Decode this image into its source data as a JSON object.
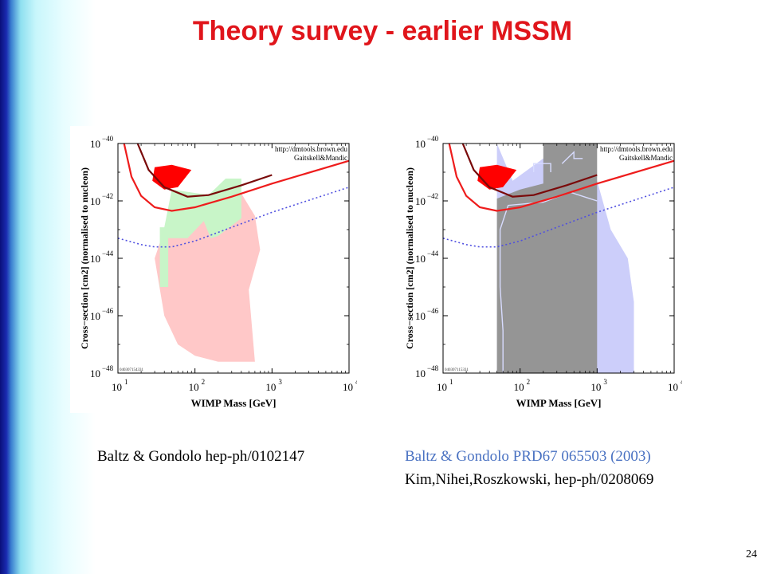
{
  "slide": {
    "title": "Theory survey - earlier MSSM",
    "page_number": "24",
    "accent_color": "#e0151b",
    "caption_left": "Baltz & Gondolo hep-ph/0102147",
    "caption_right_line1": "Baltz & Gondolo PRD67 065503 (2003)",
    "caption_right_line2": "Kim,Nihei,Roszkowski, hep-ph/0208069",
    "caption_right_line1_color": "#4a72c2"
  },
  "chart_data": [
    {
      "type": "area",
      "xlabel": "WIMP Mass [GeV]",
      "ylabel": "Cross−section [cm2] (normalised to nucleon)",
      "xscale": "log",
      "yscale": "log",
      "xlim": [
        10,
        10000
      ],
      "ylim": [
        1e-48,
        1e-40
      ],
      "xticks": [
        {
          "base": "10",
          "exp": "1"
        },
        {
          "base": "10",
          "exp": "2"
        },
        {
          "base": "10",
          "exp": "3"
        },
        {
          "base": "10",
          "exp": "4"
        }
      ],
      "yticks": [
        {
          "base": "10",
          "exp": "−40"
        },
        {
          "base": "10",
          "exp": "−42"
        },
        {
          "base": "10",
          "exp": "−44"
        },
        {
          "base": "10",
          "exp": "−46"
        },
        {
          "base": "10",
          "exp": "−48"
        }
      ],
      "annotation_line1": "http://dmtools.brown.edu",
      "annotation_line2": "Gaitskell&Mandic",
      "footer_id": "040307154331",
      "regions": [
        {
          "color": "#ffc8c8",
          "points": [
            [
              60,
              1e-42
            ],
            [
              200,
              7e-43
            ],
            [
              400,
              1.8e-42
            ],
            [
              600,
              3e-43
            ],
            [
              700,
              2e-44
            ],
            [
              500,
              8e-46
            ],
            [
              600,
              2.5e-48
            ],
            [
              200,
              2.5e-48
            ],
            [
              100,
              4e-48
            ],
            [
              60,
              1e-47
            ],
            [
              40,
              1e-46
            ],
            [
              30,
              1e-44
            ],
            [
              40,
              1e-43
            ]
          ]
        },
        {
          "color": "#c8f5c8",
          "points": [
            [
              40,
              1.2e-43
            ],
            [
              50,
              2.5e-42
            ],
            [
              150,
              1.6e-42
            ],
            [
              250,
              6e-42
            ],
            [
              400,
              6e-42
            ],
            [
              400,
              2.5e-43
            ],
            [
              200,
              6e-44
            ],
            [
              160,
              5e-44
            ],
            [
              130,
              2e-43
            ],
            [
              80,
              5e-44
            ],
            [
              45,
              5e-44
            ],
            [
              45,
              1e-45
            ],
            [
              35,
              1e-45
            ],
            [
              35,
              1.2e-43
            ]
          ]
        },
        {
          "color": "#ff0000",
          "points": [
            [
              28,
              5e-42
            ],
            [
              30,
              1.5e-41
            ],
            [
              50,
              1.8e-41
            ],
            [
              90,
              1.2e-41
            ],
            [
              60,
              3e-42
            ],
            [
              40,
              2.5e-42
            ]
          ]
        }
      ],
      "curves": [
        {
          "color": "#ee1c1c",
          "width": 2.2,
          "points": [
            [
              12,
              1e-40
            ],
            [
              15,
              7e-42
            ],
            [
              20,
              1.5e-42
            ],
            [
              30,
              6e-43
            ],
            [
              50,
              4.5e-43
            ],
            [
              100,
              6e-43
            ],
            [
              300,
              1.4e-42
            ],
            [
              1000,
              4e-42
            ],
            [
              10000,
              2.5e-41
            ]
          ]
        },
        {
          "color": "#7a0a0a",
          "width": 2.2,
          "points": [
            [
              18,
              1e-40
            ],
            [
              25,
              1.2e-41
            ],
            [
              40,
              3e-42
            ],
            [
              80,
              1.4e-42
            ],
            [
              150,
              1.6e-42
            ],
            [
              400,
              3.5e-42
            ],
            [
              1000,
              8e-42
            ]
          ]
        },
        {
          "color": "#5050e0",
          "width": 1.6,
          "dashed": true,
          "points": [
            [
              10,
              5e-44
            ],
            [
              20,
              3e-44
            ],
            [
              30,
              2.5e-44
            ],
            [
              50,
              2.5e-44
            ],
            [
              100,
              4e-44
            ],
            [
              300,
              1.2e-43
            ],
            [
              1000,
              4e-43
            ],
            [
              10000,
              3e-42
            ]
          ]
        }
      ]
    },
    {
      "type": "area",
      "xlabel": "WIMP Mass [GeV]",
      "ylabel": "Cross−section [cm2] (normalised to nucleon)",
      "xscale": "log",
      "yscale": "log",
      "xlim": [
        10,
        10000
      ],
      "ylim": [
        1e-48,
        1e-40
      ],
      "xticks": [
        {
          "base": "10",
          "exp": "1"
        },
        {
          "base": "10",
          "exp": "2"
        },
        {
          "base": "10",
          "exp": "3"
        },
        {
          "base": "10",
          "exp": "4"
        }
      ],
      "yticks": [
        {
          "base": "10",
          "exp": "−40"
        },
        {
          "base": "10",
          "exp": "−42"
        },
        {
          "base": "10",
          "exp": "−44"
        },
        {
          "base": "10",
          "exp": "−46"
        },
        {
          "base": "10",
          "exp": "−48"
        }
      ],
      "annotation_line1": "http://dmtools.brown.edu",
      "annotation_line2": "Gaitskell&Mandic",
      "footer_id": "040307115331",
      "regions": [
        {
          "color": "#cccefa",
          "points": [
            [
              50,
              1e-40
            ],
            [
              50,
              1e-48
            ],
            [
              3000,
              1e-48
            ],
            [
              3000,
              3e-46
            ],
            [
              2500,
              1e-44
            ],
            [
              1500,
              1e-43
            ],
            [
              1000,
              5e-42
            ],
            [
              200,
              3e-41
            ],
            [
              80,
              5e-42
            ],
            [
              50,
              1e-40
            ]
          ]
        },
        {
          "color": "#959595",
          "points": [
            [
              50,
              1.2e-42
            ],
            [
              100,
              2.5e-42
            ],
            [
              200,
              4e-42
            ],
            [
              200,
              1e-40
            ],
            [
              1000,
              1e-40
            ],
            [
              1000,
              1e-48
            ],
            [
              50,
              1e-48
            ]
          ]
        },
        {
          "color": "#ff0000",
          "points": [
            [
              28,
              5e-42
            ],
            [
              30,
              1.5e-41
            ],
            [
              50,
              1.8e-41
            ],
            [
              90,
              1.2e-41
            ],
            [
              60,
              3e-42
            ],
            [
              40,
              2.5e-42
            ]
          ]
        }
      ],
      "outlines": [
        {
          "color": "#d8dcff",
          "width": 1.4,
          "points": [
            [
              60,
              1e-48
            ],
            [
              60,
              3e-47
            ],
            [
              55,
              1e-45
            ],
            [
              55,
              1e-43
            ],
            [
              70,
              7e-43
            ],
            [
              200,
              9e-43
            ],
            [
              450,
              2e-42
            ],
            [
              800,
              1.2e-42
            ],
            [
              1000,
              1e-42
            ]
          ]
        },
        {
          "color": "#d8dcff",
          "width": 1.4,
          "points": [
            [
              150,
              1e-41
            ],
            [
              150,
              2e-41
            ],
            [
              250,
              2e-41
            ],
            [
              250,
              1e-41
            ]
          ]
        },
        {
          "color": "#d8dcff",
          "width": 1.4,
          "points": [
            [
              350,
              2e-41
            ],
            [
              500,
              5e-41
            ],
            [
              500,
              3e-41
            ],
            [
              650,
              3e-41
            ]
          ]
        }
      ],
      "curves": [
        {
          "color": "#ee1c1c",
          "width": 2.2,
          "points": [
            [
              12,
              1e-40
            ],
            [
              15,
              7e-42
            ],
            [
              20,
              1.5e-42
            ],
            [
              30,
              6e-43
            ],
            [
              50,
              4.5e-43
            ],
            [
              100,
              6e-43
            ],
            [
              300,
              1.4e-42
            ],
            [
              1000,
              4e-42
            ],
            [
              10000,
              2.5e-41
            ]
          ]
        },
        {
          "color": "#7a0a0a",
          "width": 2.2,
          "points": [
            [
              18,
              1e-40
            ],
            [
              25,
              1.2e-41
            ],
            [
              40,
              3e-42
            ],
            [
              80,
              1.4e-42
            ],
            [
              150,
              1.6e-42
            ],
            [
              400,
              3.5e-42
            ],
            [
              1000,
              8e-42
            ]
          ]
        },
        {
          "color": "#5050e0",
          "width": 1.6,
          "dashed": true,
          "points": [
            [
              10,
              5e-44
            ],
            [
              20,
              3e-44
            ],
            [
              30,
              2.5e-44
            ],
            [
              50,
              2.5e-44
            ],
            [
              100,
              4e-44
            ],
            [
              300,
              1.2e-43
            ],
            [
              1000,
              4e-43
            ],
            [
              10000,
              3e-42
            ]
          ]
        }
      ]
    }
  ]
}
